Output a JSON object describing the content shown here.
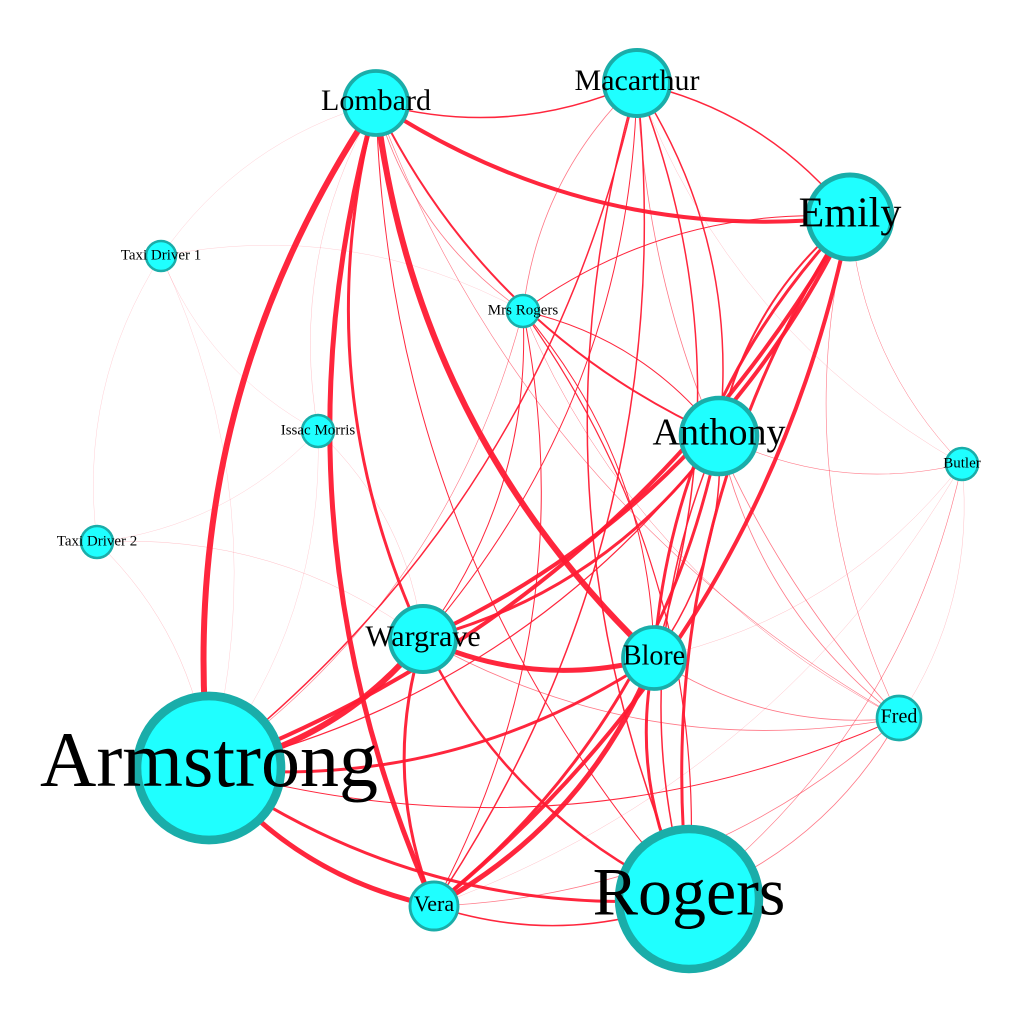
{
  "colors": {
    "edge": "#ff1a33",
    "node_fill": "#1fffff",
    "node_stroke": "#1aada9",
    "label": "#000000",
    "background": "#ffffff"
  },
  "nodes": [
    {
      "id": "armstrong",
      "label": "Armstrong"
    },
    {
      "id": "rogers",
      "label": "Rogers"
    },
    {
      "id": "emily",
      "label": "Emily"
    },
    {
      "id": "anthony",
      "label": "Anthony"
    },
    {
      "id": "lombard",
      "label": "Lombard"
    },
    {
      "id": "macarthur",
      "label": "Macarthur"
    },
    {
      "id": "wargrave",
      "label": "Wargrave"
    },
    {
      "id": "blore",
      "label": "Blore"
    },
    {
      "id": "vera",
      "label": "Vera"
    },
    {
      "id": "fred",
      "label": "Fred"
    },
    {
      "id": "butler",
      "label": "Butler"
    },
    {
      "id": "mrs_rogers",
      "label": "Mrs Rogers"
    },
    {
      "id": "issac_morris",
      "label": "Issac Morris"
    },
    {
      "id": "taxi1",
      "label": "Taxi Driver 1"
    },
    {
      "id": "taxi2",
      "label": "Taxi Driver 2"
    }
  ],
  "edges": [
    {
      "s": "lombard",
      "t": "armstrong",
      "w": 6
    },
    {
      "s": "lombard",
      "t": "blore",
      "w": 6
    },
    {
      "s": "lombard",
      "t": "vera",
      "w": 5
    },
    {
      "s": "lombard",
      "t": "emily",
      "w": 4
    },
    {
      "s": "lombard",
      "t": "wargrave",
      "w": 3
    },
    {
      "s": "lombard",
      "t": "anthony",
      "w": 2
    },
    {
      "s": "lombard",
      "t": "macarthur",
      "w": 1.5
    },
    {
      "s": "lombard",
      "t": "mrs_rogers",
      "w": 0.8
    },
    {
      "s": "lombard",
      "t": "rogers",
      "w": 1
    },
    {
      "s": "lombard",
      "t": "fred",
      "w": 0.6
    },
    {
      "s": "lombard",
      "t": "issac_morris",
      "w": 0.4
    },
    {
      "s": "lombard",
      "t": "taxi1",
      "w": 0.3
    },
    {
      "s": "armstrong",
      "t": "wargrave",
      "w": 6
    },
    {
      "s": "armstrong",
      "t": "emily",
      "w": 4
    },
    {
      "s": "armstrong",
      "t": "vera",
      "w": 5
    },
    {
      "s": "armstrong",
      "t": "rogers",
      "w": 3
    },
    {
      "s": "armstrong",
      "t": "blore",
      "w": 3
    },
    {
      "s": "armstrong",
      "t": "macarthur",
      "w": 1.5
    },
    {
      "s": "armstrong",
      "t": "anthony",
      "w": 1.2
    },
    {
      "s": "armstrong",
      "t": "fred",
      "w": 1
    },
    {
      "s": "armstrong",
      "t": "mrs_rogers",
      "w": 0.6
    },
    {
      "s": "armstrong",
      "t": "taxi2",
      "w": 0.4
    },
    {
      "s": "armstrong",
      "t": "taxi1",
      "w": 0.3
    },
    {
      "s": "armstrong",
      "t": "issac_morris",
      "w": 0.3
    },
    {
      "s": "wargrave",
      "t": "blore",
      "w": 5
    },
    {
      "s": "wargrave",
      "t": "vera",
      "w": 3
    },
    {
      "s": "wargrave",
      "t": "emily",
      "w": 4
    },
    {
      "s": "wargrave",
      "t": "anthony",
      "w": 3
    },
    {
      "s": "wargrave",
      "t": "rogers",
      "w": 2.5
    },
    {
      "s": "wargrave",
      "t": "mrs_rogers",
      "w": 1
    },
    {
      "s": "wargrave",
      "t": "macarthur",
      "w": 1
    },
    {
      "s": "wargrave",
      "t": "fred",
      "w": 0.8
    },
    {
      "s": "wargrave",
      "t": "taxi2",
      "w": 0.4
    },
    {
      "s": "wargrave",
      "t": "issac_morris",
      "w": 0.4
    },
    {
      "s": "vera",
      "t": "blore",
      "w": 5
    },
    {
      "s": "vera",
      "t": "emily",
      "w": 4
    },
    {
      "s": "vera",
      "t": "anthony",
      "w": 3
    },
    {
      "s": "vera",
      "t": "rogers",
      "w": 1.5
    },
    {
      "s": "vera",
      "t": "macarthur",
      "w": 1.5
    },
    {
      "s": "vera",
      "t": "mrs_rogers",
      "w": 1
    },
    {
      "s": "vera",
      "t": "fred",
      "w": 0.8
    },
    {
      "s": "vera",
      "t": "butler",
      "w": 0.4
    },
    {
      "s": "emily",
      "t": "blore",
      "w": 3
    },
    {
      "s": "emily",
      "t": "rogers",
      "w": 3
    },
    {
      "s": "emily",
      "t": "anthony",
      "w": 2
    },
    {
      "s": "emily",
      "t": "macarthur",
      "w": 1.5
    },
    {
      "s": "emily",
      "t": "mrs_rogers",
      "w": 1
    },
    {
      "s": "emily",
      "t": "fred",
      "w": 0.6
    },
    {
      "s": "emily",
      "t": "butler",
      "w": 0.5
    },
    {
      "s": "blore",
      "t": "rogers",
      "w": 3
    },
    {
      "s": "blore",
      "t": "macarthur",
      "w": 1.5
    },
    {
      "s": "blore",
      "t": "anthony",
      "w": 1.5
    },
    {
      "s": "blore",
      "t": "mrs_rogers",
      "w": 1
    },
    {
      "s": "blore",
      "t": "fred",
      "w": 0.8
    },
    {
      "s": "blore",
      "t": "butler",
      "w": 0.4
    },
    {
      "s": "anthony",
      "t": "rogers",
      "w": 1.5
    },
    {
      "s": "anthony",
      "t": "macarthur",
      "w": 1.5
    },
    {
      "s": "anthony",
      "t": "mrs_rogers",
      "w": 1
    },
    {
      "s": "anthony",
      "t": "fred",
      "w": 0.8
    },
    {
      "s": "anthony",
      "t": "butler",
      "w": 0.6
    },
    {
      "s": "macarthur",
      "t": "rogers",
      "w": 1.5
    },
    {
      "s": "macarthur",
      "t": "mrs_rogers",
      "w": 0.8
    },
    {
      "s": "macarthur",
      "t": "fred",
      "w": 0.8
    },
    {
      "s": "macarthur",
      "t": "butler",
      "w": 0.4
    },
    {
      "s": "rogers",
      "t": "mrs_rogers",
      "w": 1.2
    },
    {
      "s": "rogers",
      "t": "fred",
      "w": 0.8
    },
    {
      "s": "rogers",
      "t": "butler",
      "w": 0.6
    },
    {
      "s": "mrs_rogers",
      "t": "fred",
      "w": 0.5
    },
    {
      "s": "mrs_rogers",
      "t": "taxi1",
      "w": 0.3
    },
    {
      "s": "taxi1",
      "t": "taxi2",
      "w": 0.3
    },
    {
      "s": "taxi1",
      "t": "issac_morris",
      "w": 0.3
    },
    {
      "s": "taxi2",
      "t": "issac_morris",
      "w": 0.3
    },
    {
      "s": "fred",
      "t": "butler",
      "w": 0.4
    }
  ]
}
